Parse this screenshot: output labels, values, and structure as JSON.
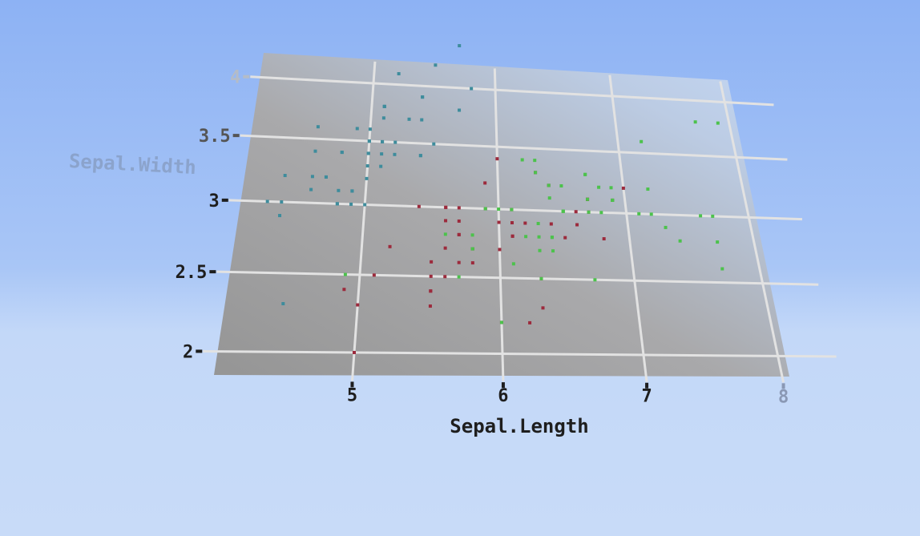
{
  "chart_data": {
    "type": "scatter",
    "xlabel": "Sepal.Length",
    "ylabel": "Sepal.Width",
    "xlim": [
      4.03,
      8.3
    ],
    "ylim": [
      1.85,
      4.2
    ],
    "grid": true,
    "xticks": [
      "5",
      "6",
      "7",
      "8"
    ],
    "yticks": [
      "2",
      "2.5",
      "3",
      "3.5",
      "4"
    ],
    "series": [
      {
        "color": "#3e8c9c",
        "x": [
          5.1,
          4.9,
          4.7,
          4.6,
          5.0,
          5.4,
          4.6,
          5.0,
          4.4,
          4.9,
          5.4,
          4.8,
          4.8,
          4.3,
          5.8,
          5.7,
          5.4,
          5.1,
          5.7,
          5.1,
          5.4,
          5.1,
          4.6,
          5.1,
          4.8,
          5.0,
          5.0,
          5.2,
          5.2,
          4.7,
          4.8,
          5.4,
          5.2,
          5.5,
          4.9,
          5.0,
          5.5,
          4.9,
          4.4,
          5.1,
          5.0,
          4.5,
          4.4,
          5.0,
          5.1,
          4.8,
          5.1,
          4.6,
          5.3,
          5.0
        ],
        "y": [
          3.5,
          3.0,
          3.2,
          3.1,
          3.6,
          3.9,
          3.4,
          3.4,
          2.9,
          3.1,
          3.7,
          3.4,
          3.0,
          3.0,
          4.0,
          4.4,
          3.9,
          3.5,
          3.8,
          3.8,
          3.4,
          3.7,
          3.6,
          3.3,
          3.4,
          3.0,
          3.4,
          3.5,
          3.4,
          3.2,
          3.1,
          3.4,
          4.1,
          4.2,
          3.1,
          3.2,
          3.5,
          3.6,
          3.0,
          3.4,
          3.5,
          2.3,
          3.2,
          3.5,
          3.8,
          3.0,
          3.8,
          3.2,
          3.7,
          3.3
        ]
      },
      {
        "color": "#9c2a3c",
        "x": [
          7.0,
          6.4,
          6.9,
          5.5,
          6.5,
          5.7,
          6.3,
          4.9,
          6.6,
          5.2,
          5.0,
          5.9,
          6.0,
          6.1,
          5.6,
          6.7,
          5.6,
          5.8,
          6.2,
          5.6,
          5.9,
          6.1,
          6.3,
          6.1,
          6.4,
          6.6,
          6.8,
          6.7,
          6.0,
          5.7,
          5.5,
          5.5,
          5.8,
          6.0,
          5.4,
          6.0,
          6.7,
          6.3,
          5.6,
          5.5,
          5.5,
          6.1,
          5.8,
          5.0,
          5.6,
          5.7,
          5.7,
          6.2,
          5.1,
          5.7
        ],
        "y": [
          3.2,
          3.2,
          3.1,
          2.3,
          2.8,
          2.8,
          3.3,
          2.4,
          2.9,
          2.7,
          2.0,
          3.0,
          2.2,
          2.9,
          2.9,
          3.1,
          3.0,
          2.7,
          2.2,
          2.5,
          3.2,
          2.8,
          2.5,
          2.8,
          2.9,
          3.0,
          2.8,
          3.0,
          2.9,
          2.6,
          2.4,
          2.4,
          2.7,
          2.7,
          3.0,
          3.4,
          3.1,
          2.3,
          3.0,
          2.5,
          2.6,
          3.0,
          2.6,
          2.3,
          2.7,
          3.0,
          2.9,
          2.9,
          2.5,
          2.8
        ]
      },
      {
        "color": "#4cc24c",
        "x": [
          6.3,
          5.8,
          7.1,
          6.3,
          6.5,
          7.6,
          4.9,
          7.3,
          6.7,
          7.2,
          6.5,
          6.4,
          6.8,
          5.7,
          5.8,
          6.4,
          6.5,
          7.7,
          7.7,
          6.0,
          6.9,
          5.6,
          7.7,
          6.3,
          6.7,
          7.2,
          6.2,
          6.1,
          6.4,
          7.2,
          7.4,
          7.9,
          6.4,
          6.3,
          6.1,
          7.7,
          6.3,
          6.4,
          6.0,
          6.9,
          6.7,
          6.9,
          5.8,
          6.8,
          6.7,
          6.7,
          6.3,
          6.5,
          6.2,
          5.9
        ],
        "y": [
          3.3,
          2.7,
          3.0,
          2.9,
          3.0,
          3.0,
          2.5,
          2.9,
          2.5,
          3.6,
          3.2,
          2.7,
          3.0,
          2.5,
          2.8,
          3.2,
          3.0,
          3.8,
          2.6,
          2.2,
          3.2,
          2.8,
          2.8,
          2.7,
          3.3,
          3.2,
          2.8,
          3.0,
          2.8,
          3.0,
          2.8,
          3.8,
          2.8,
          2.8,
          2.6,
          3.0,
          3.4,
          3.1,
          3.0,
          3.1,
          3.1,
          3.1,
          2.7,
          3.2,
          3.3,
          3.0,
          2.5,
          3.0,
          3.4,
          3.0
        ]
      }
    ]
  }
}
